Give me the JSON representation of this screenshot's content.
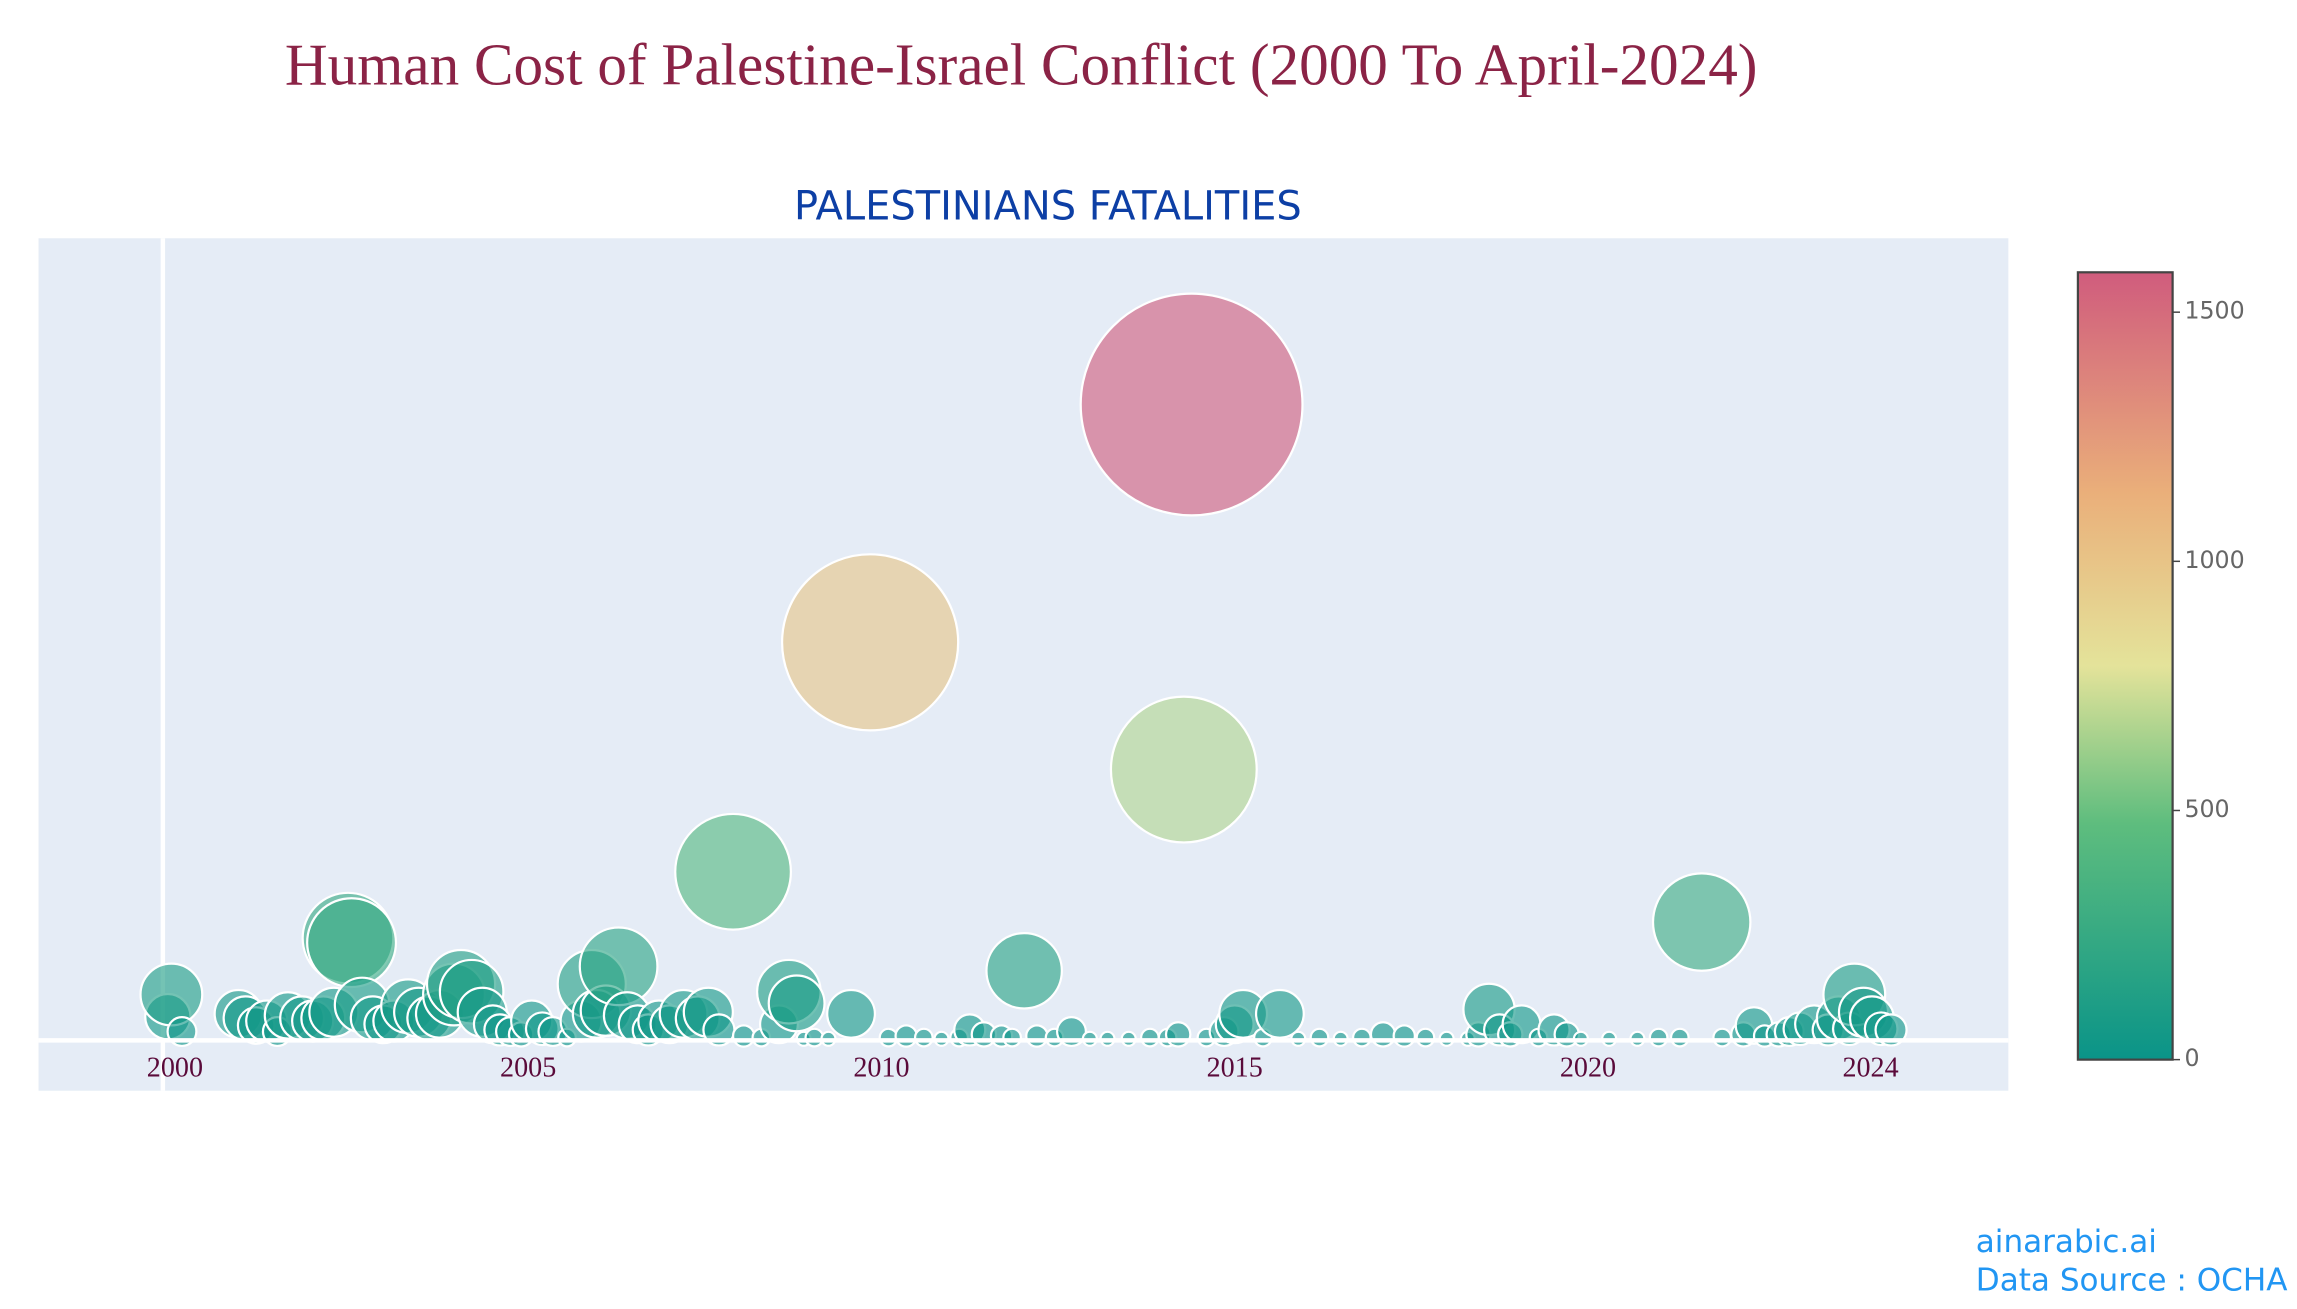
{
  "chart_data": {
    "type": "bubble",
    "title": "Human Cost of Palestine-Israel Conflict (2000 To April-2024)",
    "subtitle": "PALESTINIANS FATALITIES",
    "x": [
      1999.9,
      1999.95,
      2000.1,
      2000.9,
      2001.0,
      2001.15,
      2001.3,
      2001.45,
      2001.6,
      2001.8,
      2001.95,
      2002.1,
      2002.25,
      2002.45,
      2002.5,
      2002.65,
      2002.8,
      2002.95,
      2003.1,
      2003.3,
      2003.45,
      2003.6,
      2003.75,
      2003.95,
      2004.05,
      2004.2,
      2004.35,
      2004.5,
      2004.6,
      2004.75,
      2004.9,
      2005.05,
      2005.2,
      2005.35,
      2005.55,
      2005.75,
      2005.9,
      2005.97,
      2006.1,
      2006.28,
      2006.4,
      2006.55,
      2006.7,
      2006.85,
      2007.0,
      2007.2,
      2007.4,
      2007.55,
      2007.7,
      2007.9,
      2008.05,
      2008.3,
      2008.55,
      2008.69,
      2008.8,
      2008.9,
      2009.05,
      2009.25,
      2009.57,
      2009.84,
      2010.1,
      2010.35,
      2010.6,
      2010.85,
      2011.1,
      2011.25,
      2011.45,
      2011.7,
      2011.85,
      2012.02,
      2012.2,
      2012.45,
      2012.69,
      2012.95,
      2013.2,
      2013.5,
      2013.8,
      2014.05,
      2014.2,
      2014.28,
      2014.39,
      2014.6,
      2014.85,
      2015.0,
      2015.12,
      2015.4,
      2015.64,
      2015.9,
      2016.2,
      2016.5,
      2016.8,
      2017.1,
      2017.4,
      2017.7,
      2018.0,
      2018.3,
      2018.45,
      2018.6,
      2018.75,
      2018.9,
      2019.06,
      2019.3,
      2019.52,
      2019.7,
      2019.9,
      2020.3,
      2020.7,
      2021.0,
      2021.3,
      2021.61,
      2021.9,
      2022.2,
      2022.35,
      2022.5,
      2022.7,
      2022.85,
      2023.0,
      2023.2,
      2023.4,
      2023.55,
      2023.7,
      2023.77,
      2023.9,
      2024.02,
      2024.15,
      2024.29
    ],
    "values": [
      59,
      114,
      22,
      66,
      55,
      37,
      48,
      22,
      62,
      55,
      48,
      55,
      70,
      254,
      243,
      88,
      55,
      40,
      48,
      85,
      70,
      55,
      66,
      114,
      140,
      121,
      70,
      40,
      26,
      22,
      15,
      48,
      29,
      22,
      7,
      48,
      140,
      66,
      74,
      184,
      62,
      40,
      26,
      48,
      40,
      66,
      55,
      70,
      26,
      419,
      11,
      7,
      40,
      121,
      92,
      4,
      7,
      4,
      66,
      989,
      7,
      11,
      7,
      4,
      7,
      26,
      15,
      11,
      7,
      173,
      11,
      7,
      22,
      4,
      4,
      4,
      7,
      7,
      15,
      673,
      1580,
      7,
      22,
      40,
      66,
      7,
      66,
      4,
      7,
      4,
      7,
      15,
      11,
      7,
      4,
      4,
      15,
      77,
      26,
      15,
      40,
      7,
      26,
      15,
      4,
      4,
      4,
      7,
      7,
      294,
      7,
      15,
      37,
      11,
      15,
      22,
      29,
      40,
      26,
      55,
      29,
      114,
      70,
      55,
      29,
      26
    ],
    "xlim": [
      1998.07,
      2025.95
    ],
    "xticks": [
      2000,
      2005,
      2010,
      2015,
      2020,
      2024
    ],
    "ylim": [
      -125,
      1993
    ],
    "colorbar": {
      "range": [
        0,
        1580
      ],
      "ticks": [
        0,
        500,
        1000,
        1500
      ],
      "colorscale": [
        [
          0,
          "#0a9488"
        ],
        [
          0.3,
          "#5ebd7e"
        ],
        [
          0.5,
          "#e4e39a"
        ],
        [
          0.72,
          "#eaaf7a"
        ],
        [
          1,
          "#d05c7d"
        ]
      ]
    },
    "footer": [
      "ainarabic.ai",
      "Data Source : OCHA"
    ]
  }
}
